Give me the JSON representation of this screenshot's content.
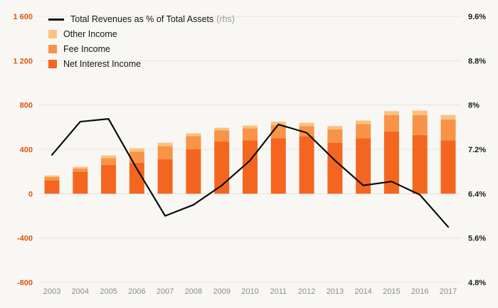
{
  "chart_data": {
    "type": "bar",
    "subtype": "stacked-bar-with-line",
    "categories": [
      "2003",
      "2004",
      "2005",
      "2006",
      "2007",
      "2008",
      "2009",
      "2010",
      "2011",
      "2012",
      "2013",
      "2014",
      "2015",
      "2016",
      "2017"
    ],
    "bar_series": [
      {
        "name": "Net Interest Income",
        "color": "#f4661f",
        "values": [
          120,
          200,
          260,
          280,
          310,
          400,
          470,
          480,
          500,
          520,
          460,
          500,
          560,
          530,
          480
        ]
      },
      {
        "name": "Fee Income",
        "color": "#f79447",
        "values": [
          30,
          28,
          60,
          100,
          120,
          120,
          100,
          110,
          120,
          90,
          120,
          130,
          150,
          180,
          190
        ]
      },
      {
        "name": "Other Income",
        "color": "#fbc180",
        "values": [
          15,
          15,
          25,
          30,
          30,
          25,
          25,
          25,
          30,
          30,
          30,
          30,
          35,
          40,
          40
        ]
      }
    ],
    "line_series": {
      "name": "Total Revenues as % of Total Assets",
      "axis": "right",
      "color": "#0d0d0d",
      "values": [
        7.1,
        7.7,
        7.75,
        6.85,
        6.0,
        6.2,
        6.55,
        7.0,
        7.65,
        7.5,
        7.0,
        6.55,
        6.62,
        6.38,
        5.8
      ]
    },
    "left_axis": {
      "min": -800,
      "max": 1600,
      "ticks": [
        1600,
        1200,
        800,
        400,
        0,
        -400,
        -800
      ],
      "labels": [
        "1 600",
        "1 200",
        "800",
        "400",
        "0",
        "-400",
        "-800"
      ],
      "color": "#e0540e"
    },
    "right_axis": {
      "min": 4.8,
      "max": 9.6,
      "ticks": [
        9.6,
        8.8,
        8.0,
        7.2,
        6.4,
        5.6,
        4.8
      ],
      "labels": [
        "9.6%",
        "8.8%",
        "8%",
        "7.2%",
        "6.4%",
        "5.6%",
        "4.8%"
      ],
      "color": "#1c1c1c"
    },
    "x_axis_color": "#8b8b8b",
    "grid": true,
    "grid_color": "#e6e4e0",
    "legend_position": "top-left",
    "background": "#f8f7f4"
  },
  "legend": {
    "items": [
      {
        "label": "Total Revenues as % of Total Assets",
        "suffix": "(rhs)",
        "type": "line",
        "color": "#0d0d0d"
      },
      {
        "label": "Other Income",
        "type": "box",
        "color": "#fbc180"
      },
      {
        "label": "Fee Income",
        "type": "box",
        "color": "#f79447"
      },
      {
        "label": "Net Interest Income",
        "type": "box",
        "color": "#f4661f"
      }
    ]
  }
}
